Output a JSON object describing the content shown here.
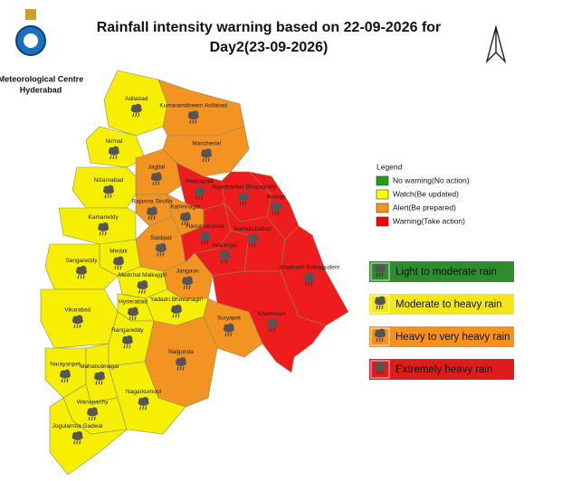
{
  "header": {
    "title_line1": "Rainfall intensity warning based on 22-09-2026 for",
    "title_line2": "Day2(23-09-2026)",
    "org": [
      "Meteorological Centre",
      "Hyderabad"
    ]
  },
  "legend": {
    "title": "Legend",
    "items": [
      {
        "label": "No warning(No action)",
        "color": "#1f9e1f"
      },
      {
        "label": "Watch(Be updated)",
        "color": "#ffff00"
      },
      {
        "label": "Alert(Be prepared)",
        "color": "#f7941d"
      },
      {
        "label": "Warning(Take action)",
        "color": "#ff0000"
      }
    ]
  },
  "rain_legend": [
    {
      "label": "Light to moderate rain",
      "color": "#2e8b2e"
    },
    {
      "label": "Moderate to heavy rain",
      "color": "#f3e61b"
    },
    {
      "label": "Heavy to very heavy rain",
      "color": "#f5921e"
    },
    {
      "label": "Extremely heavy rain",
      "color": "#e01b1b"
    }
  ],
  "districts": [
    {
      "name": "Adilabad",
      "color": "#f6f000"
    },
    {
      "name": "Nirmal",
      "color": "#f6f000"
    },
    {
      "name": "Kumarambheem Asifabad",
      "color": "#f39321"
    },
    {
      "name": "Mancherial",
      "color": "#f39321"
    },
    {
      "name": "Jagtial",
      "color": "#f39321"
    },
    {
      "name": "Nizamabad",
      "color": "#f6f000"
    },
    {
      "name": "Peddapalli",
      "color": "#ee1c1c"
    },
    {
      "name": "Jayashankar Bhupalpally",
      "color": "#ee1c1c"
    },
    {
      "name": "Mulugu",
      "color": "#ee1c1c"
    },
    {
      "name": "Rajanna Sircilla",
      "color": "#f39321"
    },
    {
      "name": "Karimnagar",
      "color": "#f39321"
    },
    {
      "name": "Kamareddy",
      "color": "#f6f000"
    },
    {
      "name": "Siddipet",
      "color": "#f39321"
    },
    {
      "name": "Hanumakonda",
      "color": "#ee1c1c"
    },
    {
      "name": "Warangal",
      "color": "#ee1c1c"
    },
    {
      "name": "Mahabubabad",
      "color": "#ee1c1c"
    },
    {
      "name": "Bhadradri Kothagudem",
      "color": "#ee1c1c"
    },
    {
      "name": "Medak",
      "color": "#f6f000"
    },
    {
      "name": "Sangareddy",
      "color": "#f6f000"
    },
    {
      "name": "Jangaon",
      "color": "#f39321"
    },
    {
      "name": "Medchal Malkajgiri",
      "color": "#f6f000"
    },
    {
      "name": "Yadadri Bhuvanagiri",
      "color": "#f6f000"
    },
    {
      "name": "Hyderabad",
      "color": "#f6f000"
    },
    {
      "name": "Khammam",
      "color": "#ee1c1c"
    },
    {
      "name": "Suryapet",
      "color": "#f39321"
    },
    {
      "name": "Nalgonda",
      "color": "#f39321"
    },
    {
      "name": "Vikarabad",
      "color": "#f6f000"
    },
    {
      "name": "Rangareddy",
      "color": "#f6f000"
    },
    {
      "name": "Narayanpet",
      "color": "#f6f000"
    },
    {
      "name": "Mahabubnagar",
      "color": "#f6f000"
    },
    {
      "name": "Nagarkurnool",
      "color": "#f6f000"
    },
    {
      "name": "Wanaparthy",
      "color": "#f6f000"
    },
    {
      "name": "Jogulamba Gadwal",
      "color": "#f6f000"
    }
  ]
}
